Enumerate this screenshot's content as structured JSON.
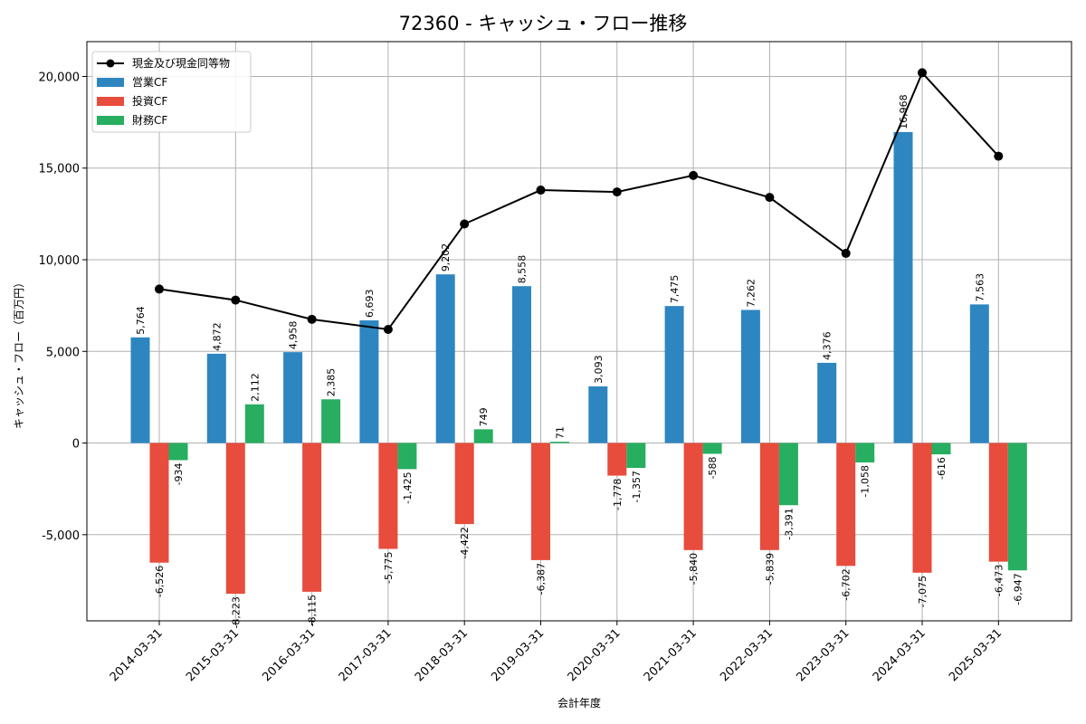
{
  "chart_data": {
    "type": "bar",
    "title": "72360 - キャッシュ・フロー推移",
    "xlabel": "会計年度",
    "ylabel": "キャッシュ・フロー（百万円）",
    "categories": [
      "2014-03-31",
      "2015-03-31",
      "2016-03-31",
      "2017-03-31",
      "2018-03-31",
      "2019-03-31",
      "2020-03-31",
      "2021-03-31",
      "2022-03-31",
      "2023-03-31",
      "2024-03-31",
      "2025-03-31"
    ],
    "ylim": [
      -9700,
      21900
    ],
    "yticks": [
      -5000,
      0,
      5000,
      10000,
      15000,
      20000
    ],
    "ytick_labels": [
      "-5,000",
      "0",
      "5,000",
      "10,000",
      "15,000",
      "20,000"
    ],
    "grid": true,
    "legend_position": "top-left",
    "series": [
      {
        "name": "営業CF",
        "kind": "bar",
        "color": "#2e86c1",
        "values": [
          5764,
          4872,
          4958,
          6693,
          9202,
          8558,
          3093,
          7475,
          7262,
          4376,
          16968,
          7563
        ],
        "labels": [
          "5,764",
          "4,872",
          "4,958",
          "6,693",
          "9,202",
          "8,558",
          "3,093",
          "7,475",
          "7,262",
          "4,376",
          "16,968",
          "7,563"
        ]
      },
      {
        "name": "投資CF",
        "kind": "bar",
        "color": "#e74c3c",
        "values": [
          -6526,
          -8223,
          -8115,
          -5775,
          -4422,
          -6387,
          -1778,
          -5840,
          -5839,
          -6702,
          -7075,
          -6473
        ],
        "labels": [
          "-6,526",
          "-8,223",
          "-8,115",
          "-5,775",
          "-4,422",
          "-6,387",
          "-1,778",
          "-5,840",
          "-5,839",
          "-6,702",
          "-7,075",
          "-6,473"
        ]
      },
      {
        "name": "財務CF",
        "kind": "bar",
        "color": "#27ae60",
        "values": [
          -934,
          2112,
          2385,
          -1425,
          749,
          71,
          -1357,
          -588,
          -3391,
          -1058,
          -616,
          -6947
        ],
        "labels": [
          "-934",
          "2,112",
          "2,385",
          "-1,425",
          "749",
          "71",
          "-1,357",
          "-588",
          "-3,391",
          "-1,058",
          "-616",
          "-6,947"
        ]
      },
      {
        "name": "現金及び現金同等物",
        "kind": "line",
        "color": "#000000",
        "values": [
          8400,
          7800,
          6750,
          6200,
          11950,
          13800,
          13700,
          14600,
          13400,
          10350,
          20200,
          15650
        ]
      }
    ]
  }
}
